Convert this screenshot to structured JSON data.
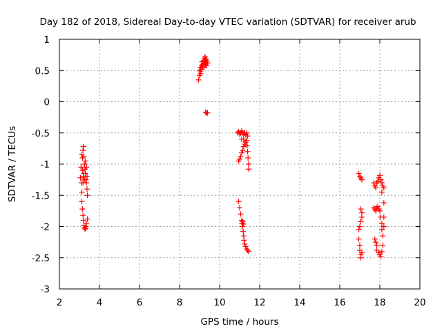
{
  "chart_data": {
    "type": "scatter",
    "title": "Day 182 of 2018, Sidereal Day-to-day VTEC variation (SDTVAR) for receiver arub",
    "xlabel": "GPS time / hours",
    "ylabel": "SDTVAR / TECUs",
    "xlim": [
      2,
      20
    ],
    "ylim": [
      -3,
      1
    ],
    "xticks": [
      "2",
      "4",
      "6",
      "8",
      "10",
      "12",
      "14",
      "16",
      "18",
      "20"
    ],
    "yticks": [
      "1",
      "0.5",
      "0",
      "-0.5",
      "-1",
      "-1.5",
      "-2",
      "-2.5",
      "-3"
    ],
    "grid": true,
    "marker": "+",
    "series_color": "#ff0000",
    "series": [
      {
        "name": "sdtvar",
        "points": [
          [
            3.05,
            -1.22
          ],
          [
            3.08,
            -1.05
          ],
          [
            3.1,
            -1.3
          ],
          [
            3.12,
            -1.45
          ],
          [
            3.12,
            -1.6
          ],
          [
            3.15,
            -1.72
          ],
          [
            3.18,
            -1.82
          ],
          [
            3.2,
            -1.9
          ],
          [
            3.22,
            -1.98
          ],
          [
            3.25,
            -2.02
          ],
          [
            3.28,
            -2.04
          ],
          [
            3.3,
            -2.03
          ],
          [
            3.32,
            -2.0
          ],
          [
            3.35,
            -1.95
          ],
          [
            3.4,
            -1.88
          ],
          [
            3.12,
            -0.85
          ],
          [
            3.15,
            -0.9
          ],
          [
            3.18,
            -0.78
          ],
          [
            3.2,
            -0.72
          ],
          [
            3.22,
            -0.88
          ],
          [
            3.25,
            -1.0
          ],
          [
            3.28,
            -1.08
          ],
          [
            3.3,
            -1.15
          ],
          [
            3.32,
            -1.25
          ],
          [
            3.35,
            -1.3
          ],
          [
            3.38,
            -1.4
          ],
          [
            3.4,
            -1.5
          ],
          [
            3.3,
            -0.95
          ],
          [
            3.35,
            -1.05
          ],
          [
            3.38,
            -1.2
          ],
          [
            3.15,
            -1.1
          ],
          [
            3.2,
            -1.2
          ],
          [
            3.25,
            -1.25
          ],
          [
            3.18,
            -1.3
          ],
          [
            3.22,
            -1.15
          ],
          [
            8.95,
            0.35
          ],
          [
            9.0,
            0.42
          ],
          [
            9.0,
            0.5
          ],
          [
            9.05,
            0.48
          ],
          [
            9.05,
            0.55
          ],
          [
            9.1,
            0.58
          ],
          [
            9.1,
            0.52
          ],
          [
            9.15,
            0.6
          ],
          [
            9.15,
            0.56
          ],
          [
            9.2,
            0.62
          ],
          [
            9.2,
            0.66
          ],
          [
            9.25,
            0.63
          ],
          [
            9.25,
            0.7
          ],
          [
            9.3,
            0.68
          ],
          [
            9.3,
            0.6
          ],
          [
            9.35,
            0.64
          ],
          [
            9.35,
            0.58
          ],
          [
            9.4,
            0.62
          ],
          [
            9.05,
            0.45
          ],
          [
            9.12,
            0.64
          ],
          [
            9.22,
            0.55
          ],
          [
            9.28,
            0.72
          ],
          [
            9.33,
            0.67
          ],
          [
            9.3,
            -0.17
          ],
          [
            9.35,
            -0.18
          ],
          [
            9.4,
            -0.18
          ],
          [
            10.9,
            -0.5
          ],
          [
            10.95,
            -0.48
          ],
          [
            11.0,
            -0.52
          ],
          [
            11.05,
            -0.5
          ],
          [
            11.1,
            -0.47
          ],
          [
            11.15,
            -0.5
          ],
          [
            11.2,
            -0.52
          ],
          [
            11.25,
            -0.5
          ],
          [
            11.3,
            -0.53
          ],
          [
            11.35,
            -0.5
          ],
          [
            11.4,
            -0.55
          ],
          [
            11.35,
            -0.62
          ],
          [
            11.3,
            -0.65
          ],
          [
            11.25,
            -0.68
          ],
          [
            11.2,
            -0.72
          ],
          [
            11.15,
            -0.78
          ],
          [
            11.1,
            -0.82
          ],
          [
            11.05,
            -0.88
          ],
          [
            11.0,
            -0.92
          ],
          [
            10.95,
            -0.95
          ],
          [
            11.38,
            -0.7
          ],
          [
            11.4,
            -0.8
          ],
          [
            11.42,
            -0.9
          ],
          [
            11.45,
            -1.0
          ],
          [
            11.45,
            -1.08
          ],
          [
            11.1,
            -0.6
          ],
          [
            11.2,
            -0.6
          ],
          [
            10.95,
            -1.6
          ],
          [
            11.0,
            -1.7
          ],
          [
            11.05,
            -1.8
          ],
          [
            11.1,
            -1.9
          ],
          [
            11.12,
            -1.95
          ],
          [
            11.15,
            -2.0
          ],
          [
            11.18,
            -2.08
          ],
          [
            11.2,
            -2.15
          ],
          [
            11.22,
            -2.22
          ],
          [
            11.25,
            -2.28
          ],
          [
            11.3,
            -2.32
          ],
          [
            11.35,
            -2.36
          ],
          [
            11.4,
            -2.38
          ],
          [
            11.45,
            -2.4
          ],
          [
            11.15,
            -1.92
          ],
          [
            11.2,
            -1.96
          ],
          [
            16.95,
            -1.15
          ],
          [
            17.0,
            -1.2
          ],
          [
            17.05,
            -1.22
          ],
          [
            17.1,
            -1.25
          ],
          [
            17.05,
            -1.72
          ],
          [
            17.1,
            -1.78
          ],
          [
            17.1,
            -1.85
          ],
          [
            17.05,
            -1.92
          ],
          [
            17.0,
            -2.0
          ],
          [
            16.95,
            -2.05
          ],
          [
            16.95,
            -2.2
          ],
          [
            17.0,
            -2.3
          ],
          [
            17.0,
            -2.38
          ],
          [
            17.05,
            -2.45
          ],
          [
            17.05,
            -2.5
          ],
          [
            17.1,
            -2.42
          ],
          [
            17.7,
            -1.3
          ],
          [
            17.75,
            -1.35
          ],
          [
            17.8,
            -1.38
          ],
          [
            17.85,
            -1.3
          ],
          [
            17.9,
            -1.28
          ],
          [
            17.95,
            -1.22
          ],
          [
            18.0,
            -1.18
          ],
          [
            18.05,
            -1.25
          ],
          [
            18.1,
            -1.3
          ],
          [
            18.15,
            -1.35
          ],
          [
            18.2,
            -1.38
          ],
          [
            18.1,
            -1.45
          ],
          [
            17.7,
            -1.7
          ],
          [
            17.75,
            -1.72
          ],
          [
            17.8,
            -1.75
          ],
          [
            17.85,
            -1.7
          ],
          [
            17.9,
            -1.68
          ],
          [
            17.95,
            -1.72
          ],
          [
            18.0,
            -1.75
          ],
          [
            18.05,
            -1.85
          ],
          [
            18.1,
            -1.95
          ],
          [
            18.1,
            -2.05
          ],
          [
            18.15,
            -2.15
          ],
          [
            18.2,
            -2.0
          ],
          [
            18.2,
            -1.85
          ],
          [
            18.2,
            -1.62
          ],
          [
            17.75,
            -2.2
          ],
          [
            17.8,
            -2.25
          ],
          [
            17.85,
            -2.3
          ],
          [
            17.85,
            -2.38
          ],
          [
            17.95,
            -2.42
          ],
          [
            18.0,
            -2.45
          ],
          [
            18.05,
            -2.48
          ],
          [
            18.1,
            -2.4
          ],
          [
            18.15,
            -2.3
          ]
        ]
      }
    ]
  }
}
